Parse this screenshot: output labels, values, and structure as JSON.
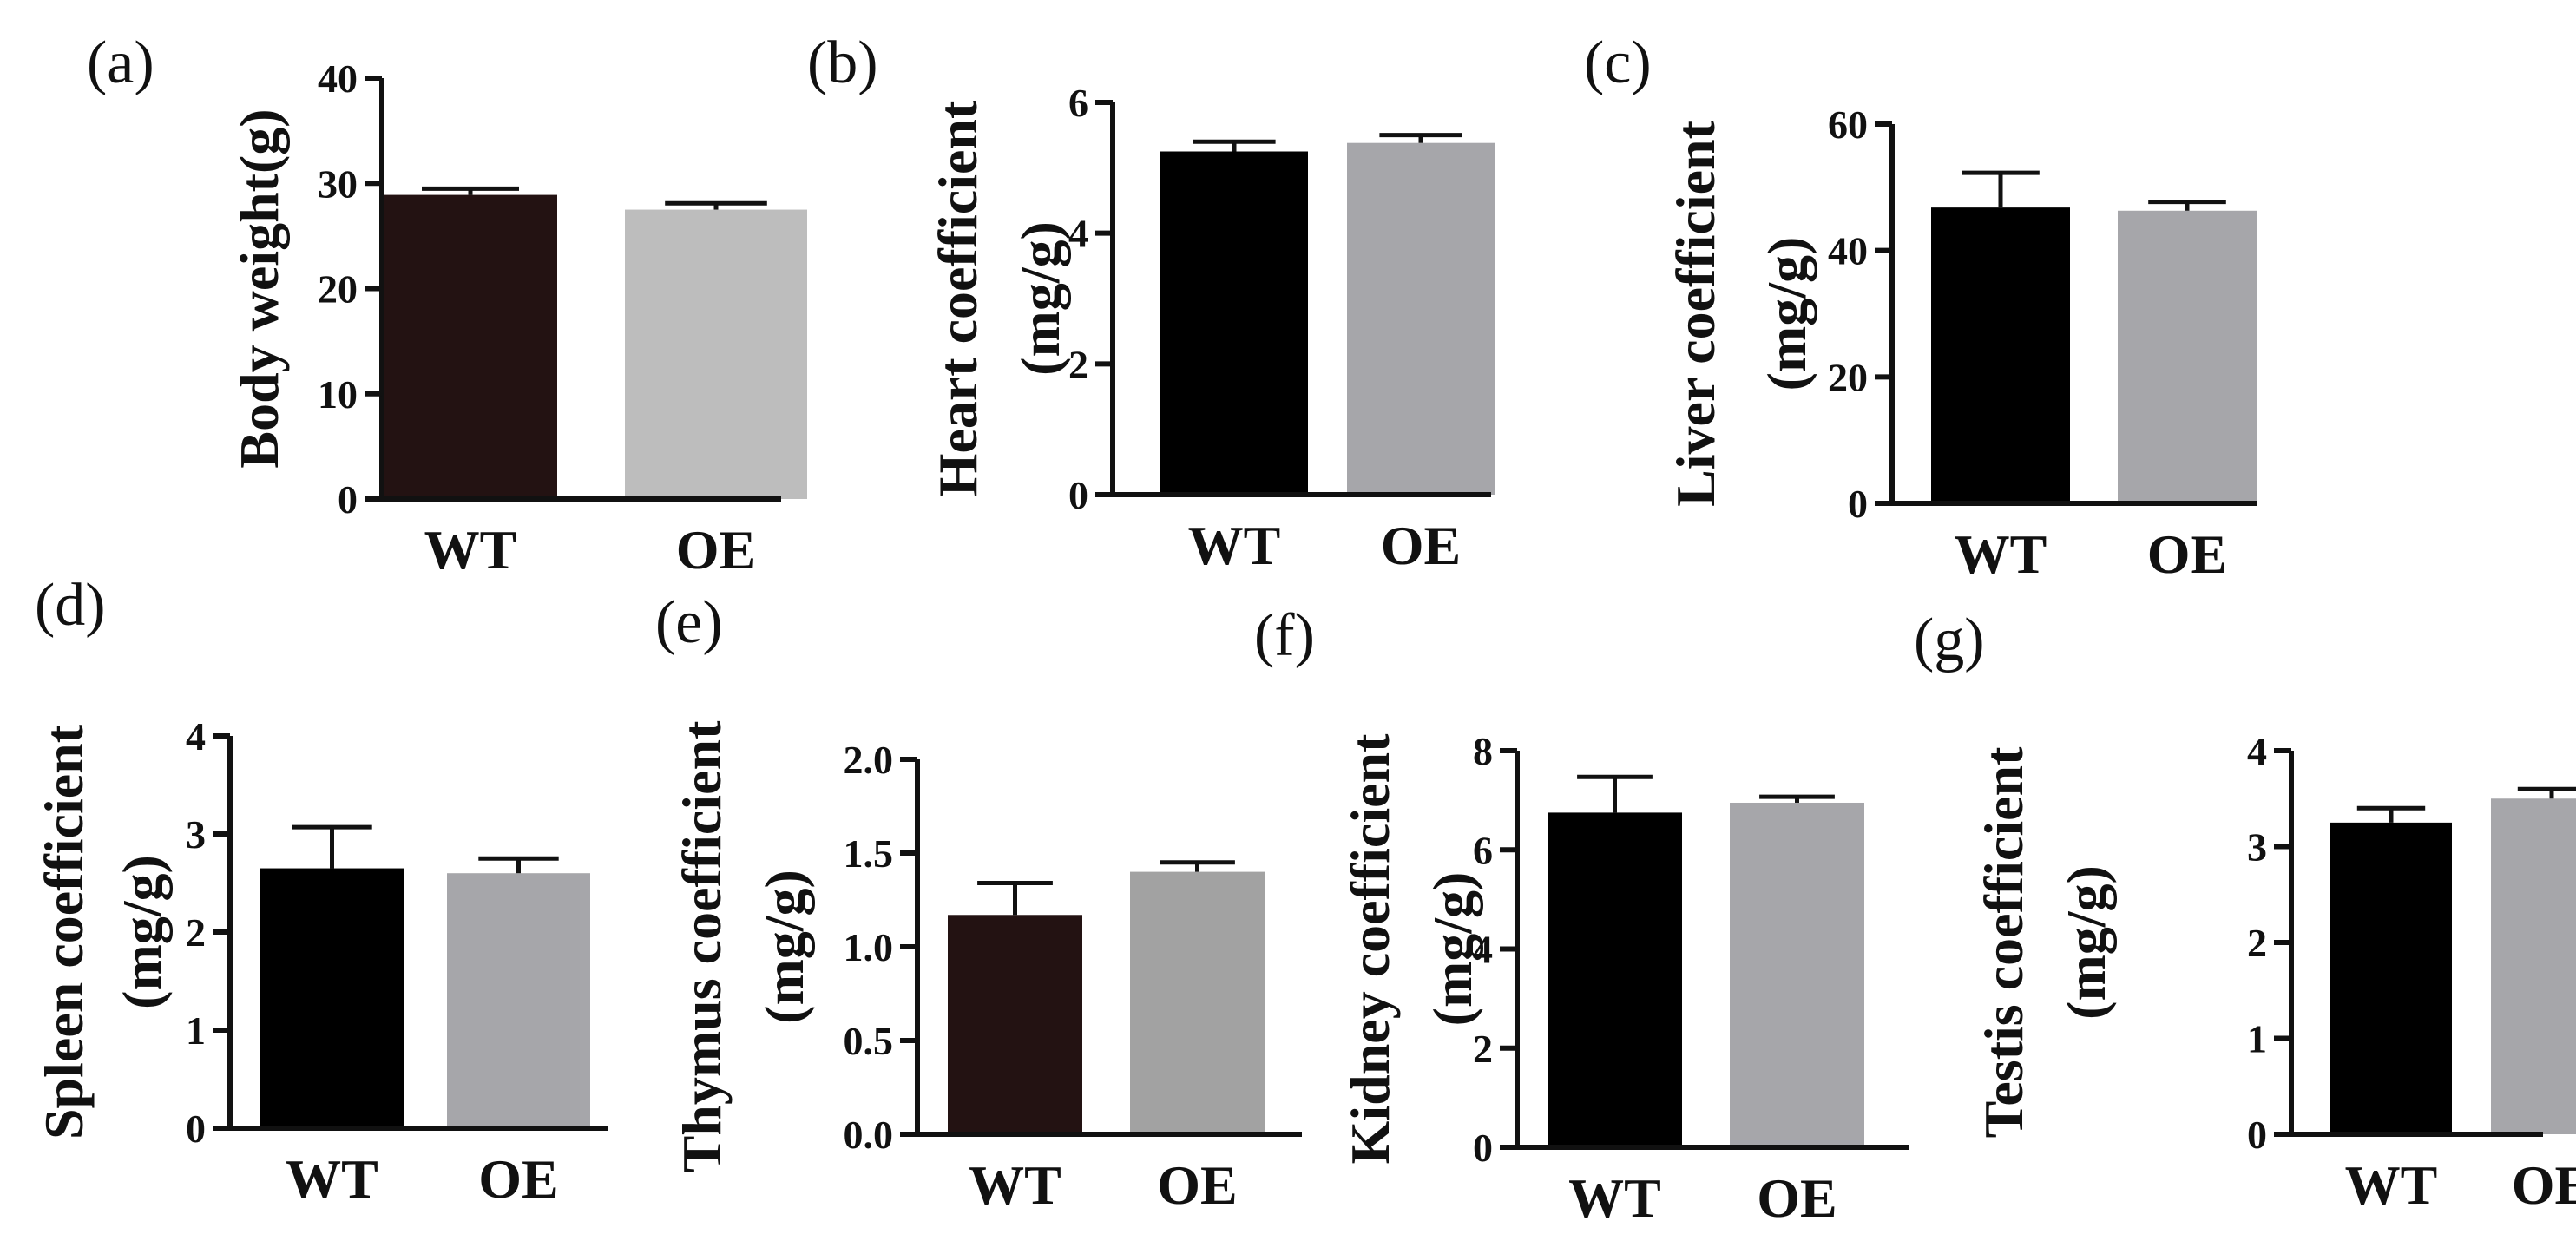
{
  "chart_data": [
    {
      "panel": "(a)",
      "type": "bar",
      "categories": [
        "WT",
        "OE"
      ],
      "values": [
        28.9,
        27.5
      ],
      "errors": [
        0.6,
        0.6
      ],
      "ylabel_lines": [
        "Body weight(g)"
      ],
      "ylim": [
        0,
        40
      ],
      "yticks": [
        "0",
        "10",
        "20",
        "30",
        "40"
      ],
      "colors": [
        "#231212",
        "#bdbdbd"
      ]
    },
    {
      "panel": "(b)",
      "type": "bar",
      "categories": [
        "WT",
        "OE"
      ],
      "values": [
        5.25,
        5.38
      ],
      "errors": [
        0.15,
        0.12
      ],
      "ylabel_lines": [
        "Heart coefficient",
        "(mg/g)"
      ],
      "ylim": [
        0,
        6
      ],
      "yticks": [
        "0",
        "2",
        "4",
        "6"
      ],
      "colors": [
        "#000000",
        "#a6a6aa"
      ]
    },
    {
      "panel": "(c)",
      "type": "bar",
      "categories": [
        "WT",
        "OE"
      ],
      "values": [
        46.8,
        46.3
      ],
      "errors": [
        5.5,
        1.4
      ],
      "ylabel_lines": [
        "Liver coefficient",
        "(mg/g)"
      ],
      "ylim": [
        0,
        60
      ],
      "yticks": [
        "0",
        "20",
        "40",
        "60"
      ],
      "colors": [
        "#000000",
        "#a6a6aa"
      ]
    },
    {
      "panel": "(d)",
      "type": "bar",
      "categories": [
        "WT",
        "OE"
      ],
      "values": [
        2.65,
        2.6
      ],
      "errors": [
        0.42,
        0.15
      ],
      "ylabel_lines": [
        "Spleen coefficient",
        "(mg/g)"
      ],
      "ylim": [
        0,
        4
      ],
      "yticks": [
        "0",
        "1",
        "2",
        "3",
        "4"
      ],
      "colors": [
        "#000000",
        "#a6a6aa"
      ]
    },
    {
      "panel": "(e)",
      "type": "bar",
      "categories": [
        "WT",
        "OE"
      ],
      "values": [
        1.17,
        1.4
      ],
      "errors": [
        0.17,
        0.05
      ],
      "ylabel_lines": [
        "Thymus coefficient",
        "(mg/g)"
      ],
      "ylim": [
        0,
        2.0
      ],
      "yticks": [
        "0.0",
        "0.5",
        "1.0",
        "1.5",
        "2.0"
      ],
      "colors": [
        "#231212",
        "#a2a2a2"
      ]
    },
    {
      "panel": "(f)",
      "type": "bar",
      "categories": [
        "WT",
        "OE"
      ],
      "values": [
        6.75,
        6.95
      ],
      "errors": [
        0.72,
        0.12
      ],
      "ylabel_lines": [
        "Kidney coefficient",
        "(mg/g)"
      ],
      "ylim": [
        0,
        8
      ],
      "yticks": [
        "0",
        "2",
        "4",
        "6",
        "8"
      ],
      "colors": [
        "#000000",
        "#a6a6aa"
      ]
    },
    {
      "panel": "(g)",
      "type": "bar",
      "categories": [
        "WT",
        "OE"
      ],
      "values": [
        3.25,
        3.5
      ],
      "errors": [
        0.15,
        0.1
      ],
      "ylabel_lines": [
        "Testis coefficient",
        "(mg/g)"
      ],
      "ylim": [
        0,
        4
      ],
      "yticks": [
        "0",
        "1",
        "2",
        "3",
        "4"
      ],
      "colors": [
        "#000000",
        "#a6a6aa"
      ]
    }
  ]
}
